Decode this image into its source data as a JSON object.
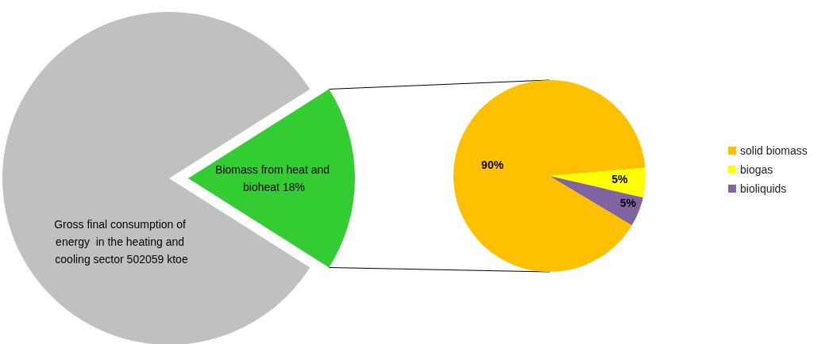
{
  "chart_data": [
    {
      "type": "pie",
      "categories": [
        "Gross final consumption of energy  in the heating and cooling sector 502059 ktoe",
        "Biomass from heat and bioheat"
      ],
      "values": [
        82,
        18
      ],
      "colors": [
        "#c0c0c0",
        "#33cc33"
      ],
      "value_labels": [
        null,
        "18%"
      ]
    },
    {
      "type": "pie",
      "categories": [
        "solid biomass",
        "biogas",
        "bioliquids"
      ],
      "values": [
        90,
        5,
        5
      ],
      "colors": [
        "#ffc000",
        "#ffff00",
        "#8064a2"
      ],
      "value_labels": [
        "90%",
        "5%",
        "5%"
      ],
      "legend": "right"
    }
  ]
}
